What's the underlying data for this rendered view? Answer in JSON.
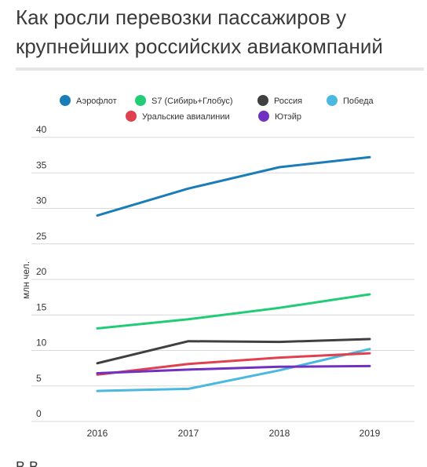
{
  "title": "Как росли перевозки пассажиров у крупнейших российских авиакомпаний",
  "chart_data": {
    "type": "line",
    "title": "Как росли перевозки пассажиров у крупнейших российских авиакомпаний",
    "ylabel": "млн чел.",
    "xlabel": "",
    "x": [
      "2016",
      "2017",
      "2018",
      "2019"
    ],
    "ylim": [
      0,
      40
    ],
    "yticks": [
      0,
      5,
      10,
      15,
      20,
      25,
      30,
      35,
      40
    ],
    "grid": true,
    "legend": "top",
    "series": [
      {
        "name": "Аэрофлот",
        "color": "#1a7db8",
        "values": [
          29.0,
          32.8,
          35.8,
          37.2
        ]
      },
      {
        "name": "S7 (Сибирь+Глобус)",
        "color": "#22cc77",
        "values": [
          13.1,
          14.4,
          16.0,
          17.9
        ]
      },
      {
        "name": "Россия",
        "color": "#404040",
        "values": [
          8.2,
          11.3,
          11.2,
          11.6
        ]
      },
      {
        "name": "Победа",
        "color": "#4bb8e0",
        "values": [
          4.3,
          4.6,
          7.2,
          10.2
        ]
      },
      {
        "name": "Уральские авиалинии",
        "color": "#e04050",
        "values": [
          6.6,
          8.1,
          9.0,
          9.6
        ]
      },
      {
        "name": "Ютэйр",
        "color": "#7030c0",
        "values": [
          6.8,
          7.3,
          7.7,
          7.8
        ]
      }
    ]
  },
  "footer_text": "В                                 В"
}
